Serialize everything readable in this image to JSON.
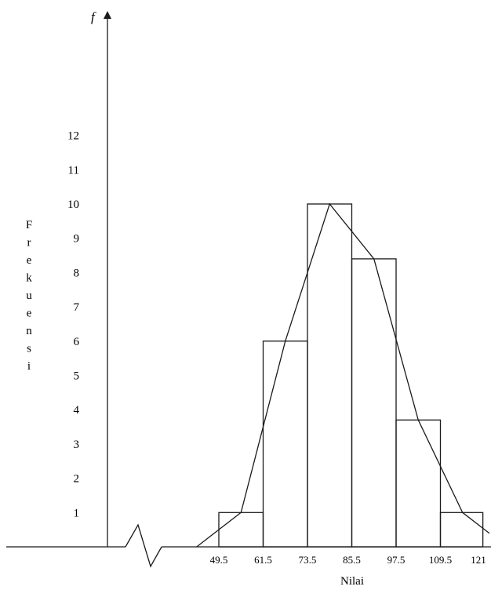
{
  "chart_data": {
    "type": "bar",
    "subtype": "histogram-with-frequency-polygon",
    "y_symbol": "f",
    "ylabel": "Frekuensi",
    "xlabel": "Nilai",
    "class_boundaries": [
      49.5,
      61.5,
      73.5,
      85.5,
      97.5,
      109.5,
      121
    ],
    "x_tick_labels": [
      "49.5",
      "61.5",
      "73.5",
      "85.5",
      "97.5",
      "109.5",
      "121"
    ],
    "values": [
      1,
      6,
      10,
      8.4,
      3.7,
      1
    ],
    "polygon": {
      "x": [
        43.5,
        55.5,
        67.5,
        79.5,
        91.5,
        103.5,
        115.5,
        127.5
      ],
      "y": [
        0,
        1,
        6,
        10,
        8.4,
        3.7,
        1,
        0
      ]
    },
    "y_ticks": [
      1,
      2,
      3,
      4,
      5,
      6,
      7,
      8,
      9,
      10,
      11,
      12
    ],
    "x_axis_break": true,
    "grid": false,
    "colors": {
      "stroke": "#1a1a1a",
      "background": "#ffffff"
    }
  }
}
